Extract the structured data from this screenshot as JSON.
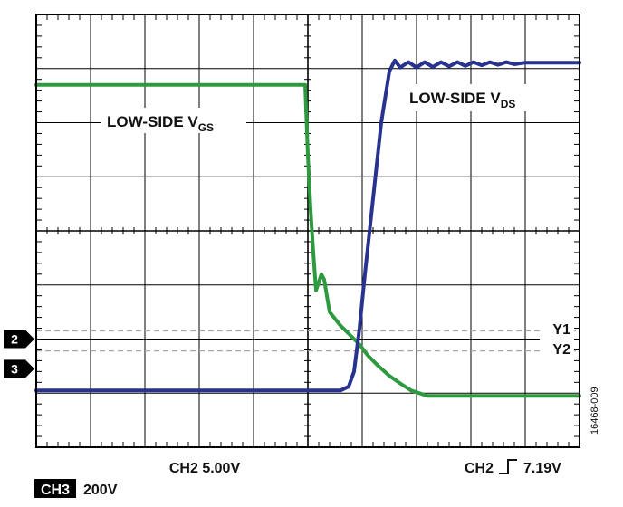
{
  "chart_data": {
    "type": "line",
    "grid": true,
    "annotations": {
      "vgs_label": "LOW-SIDE V",
      "vgs_sub": "GS",
      "vds_label": "LOW-SIDE V",
      "vds_sub": "DS",
      "cursor_y1": "Y1",
      "cursor_y2": "Y2"
    },
    "markers": {
      "ch2": "2",
      "ch3": "3"
    },
    "scale": {
      "ch2": "CH2 5.00V",
      "trigger_prefix": "CH2",
      "trigger_value": "7.19V",
      "ch3_badge": "CH3",
      "ch3_value": "200V"
    },
    "figure_id": "16468-009",
    "colors": {
      "vgs": "#2e9a40",
      "vds": "#27338f",
      "grid": "#000000",
      "cursor": "#aaaaaa"
    },
    "series": [
      {
        "points": [
          [
            0,
            2.7
          ],
          [
            4.95,
            2.7
          ],
          [
            5.0,
            1.4
          ],
          [
            5.05,
            0.4
          ],
          [
            5.1,
            -0.4
          ],
          [
            5.15,
            -1.1
          ],
          [
            5.2,
            -0.95
          ],
          [
            5.25,
            -0.8
          ],
          [
            5.3,
            -0.9
          ],
          [
            5.4,
            -1.5
          ],
          [
            5.6,
            -1.75
          ],
          [
            5.8,
            -1.95
          ],
          [
            5.95,
            -2.1
          ],
          [
            6.1,
            -2.3
          ],
          [
            6.3,
            -2.5
          ],
          [
            6.5,
            -2.68
          ],
          [
            6.7,
            -2.82
          ],
          [
            6.9,
            -2.95
          ],
          [
            7.2,
            -3.05
          ],
          [
            7.6,
            -3.05
          ],
          [
            10,
            -3.05
          ]
        ]
      },
      {
        "points": [
          [
            0,
            -2.95
          ],
          [
            5.6,
            -2.95
          ],
          [
            5.75,
            -2.88
          ],
          [
            5.85,
            -2.6
          ],
          [
            5.95,
            -1.8
          ],
          [
            6.05,
            -0.8
          ],
          [
            6.2,
            0.6
          ],
          [
            6.35,
            2.0
          ],
          [
            6.5,
            2.95
          ],
          [
            6.6,
            3.15
          ],
          [
            6.7,
            3.02
          ],
          [
            6.85,
            3.12
          ],
          [
            7.0,
            3.02
          ],
          [
            7.15,
            3.12
          ],
          [
            7.3,
            3.03
          ],
          [
            7.45,
            3.12
          ],
          [
            7.6,
            3.04
          ],
          [
            7.75,
            3.12
          ],
          [
            7.9,
            3.05
          ],
          [
            8.05,
            3.12
          ],
          [
            8.2,
            3.06
          ],
          [
            8.35,
            3.12
          ],
          [
            8.5,
            3.07
          ],
          [
            8.65,
            3.12
          ],
          [
            8.8,
            3.08
          ],
          [
            9.0,
            3.11
          ],
          [
            10,
            3.11
          ]
        ]
      }
    ],
    "cursors": {
      "y1": -1.85,
      "y2": -2.22
    },
    "channel_offsets": {
      "ch2": -2.0,
      "ch3": -2.55
    },
    "xlim": [
      0,
      10
    ],
    "ylim": [
      -4,
      4
    ]
  }
}
